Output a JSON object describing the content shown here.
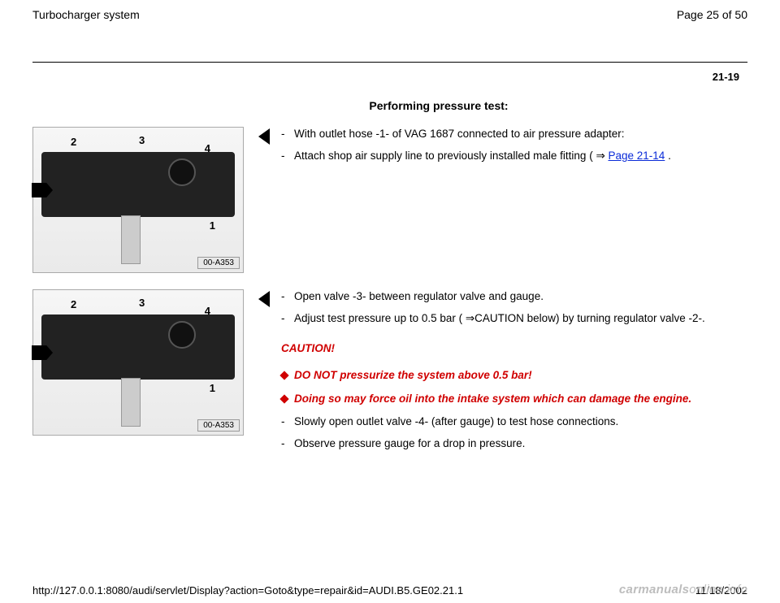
{
  "header": {
    "title": "Turbocharger system",
    "pager": "Page 25 of 50"
  },
  "page_number": "21-19",
  "section_title": "Performing pressure test:",
  "figure": {
    "badge": "00-A353",
    "labels": {
      "l1": "1",
      "l2": "2",
      "l3": "3",
      "l4": "4"
    }
  },
  "block1": {
    "items": [
      {
        "text": "With outlet hose -1- of VAG 1687 connected to air pressure adapter:"
      },
      {
        "text": "Attach shop air supply line to previously installed male fitting (  ",
        "link": "Page 21-14",
        "after": " ."
      }
    ]
  },
  "block2": {
    "items": [
      {
        "text": "Open valve -3- between regulator valve and gauge."
      },
      {
        "text": "Adjust test pressure up to 0.5 bar ( ⇒CAUTION below) by turning regulator valve -2-."
      }
    ],
    "caution_head": "CAUTION!",
    "cautions": [
      "DO NOT pressurize the system above 0.5 bar!",
      "Doing so may force oil into the intake system which can damage the engine."
    ],
    "after": [
      {
        "text": "Slowly open outlet valve -4- (after gauge) to test hose connections."
      },
      {
        "text": "Observe pressure gauge for a drop in pressure."
      }
    ]
  },
  "footer": {
    "url": "http://127.0.0.1:8080/audi/servlet/Display?action=Goto&type=repair&id=AUDI.B5.GE02.21.1",
    "date": "11/18/2002"
  },
  "watermark": {
    "a": "carmanuals",
    "b": "online",
    "c": ".info"
  }
}
